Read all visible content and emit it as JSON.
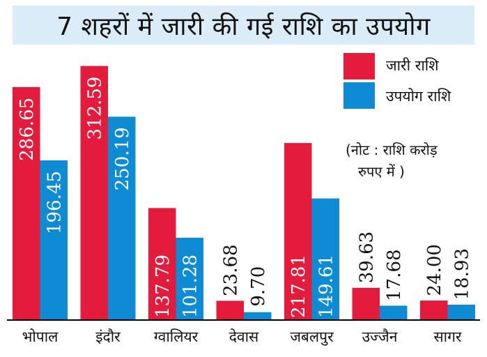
{
  "chart_data": {
    "type": "bar",
    "title": "7 शहरों में जारी की गई राशि का उपयोग",
    "categories": [
      "भोपाल",
      "इंदौर",
      "ग्वालियर",
      "देवास",
      "जबलपुर",
      "उज्जैन",
      "सागर"
    ],
    "series": [
      {
        "name": "जारी राशि",
        "color": "#e31c3d",
        "values": [
          286.65,
          312.59,
          137.79,
          23.68,
          217.81,
          39.63,
          24.0
        ],
        "labels": [
          "286.65",
          "312.59",
          "137.79",
          "23.68",
          "217.81",
          "39.63",
          "24.00"
        ]
      },
      {
        "name": "उपयोग राशि",
        "color": "#0e8bd2",
        "values": [
          196.45,
          250.19,
          101.28,
          9.7,
          149.61,
          17.68,
          18.93
        ],
        "labels": [
          "196.45",
          "250.19",
          "101.28",
          "9.70",
          "149.61",
          "17.68",
          "18.93"
        ]
      }
    ],
    "ylim": [
      0,
      320
    ],
    "legend_position": "top-right",
    "note": [
      "(नोट : राशि करोड़",
      "रुपए में )"
    ],
    "grid": false
  }
}
